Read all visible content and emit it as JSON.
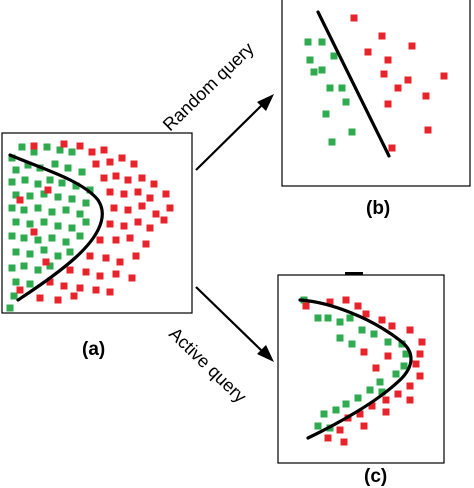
{
  "labels": {
    "panel_a": "(a)",
    "panel_b": "(b)",
    "panel_c": "(c)",
    "random_query": "Random query",
    "active_query": "Active query"
  },
  "colors": {
    "class_green": "#2eaa4f",
    "class_red": "#e8232b",
    "boundary": "#000000",
    "frame": "#000000"
  }
}
